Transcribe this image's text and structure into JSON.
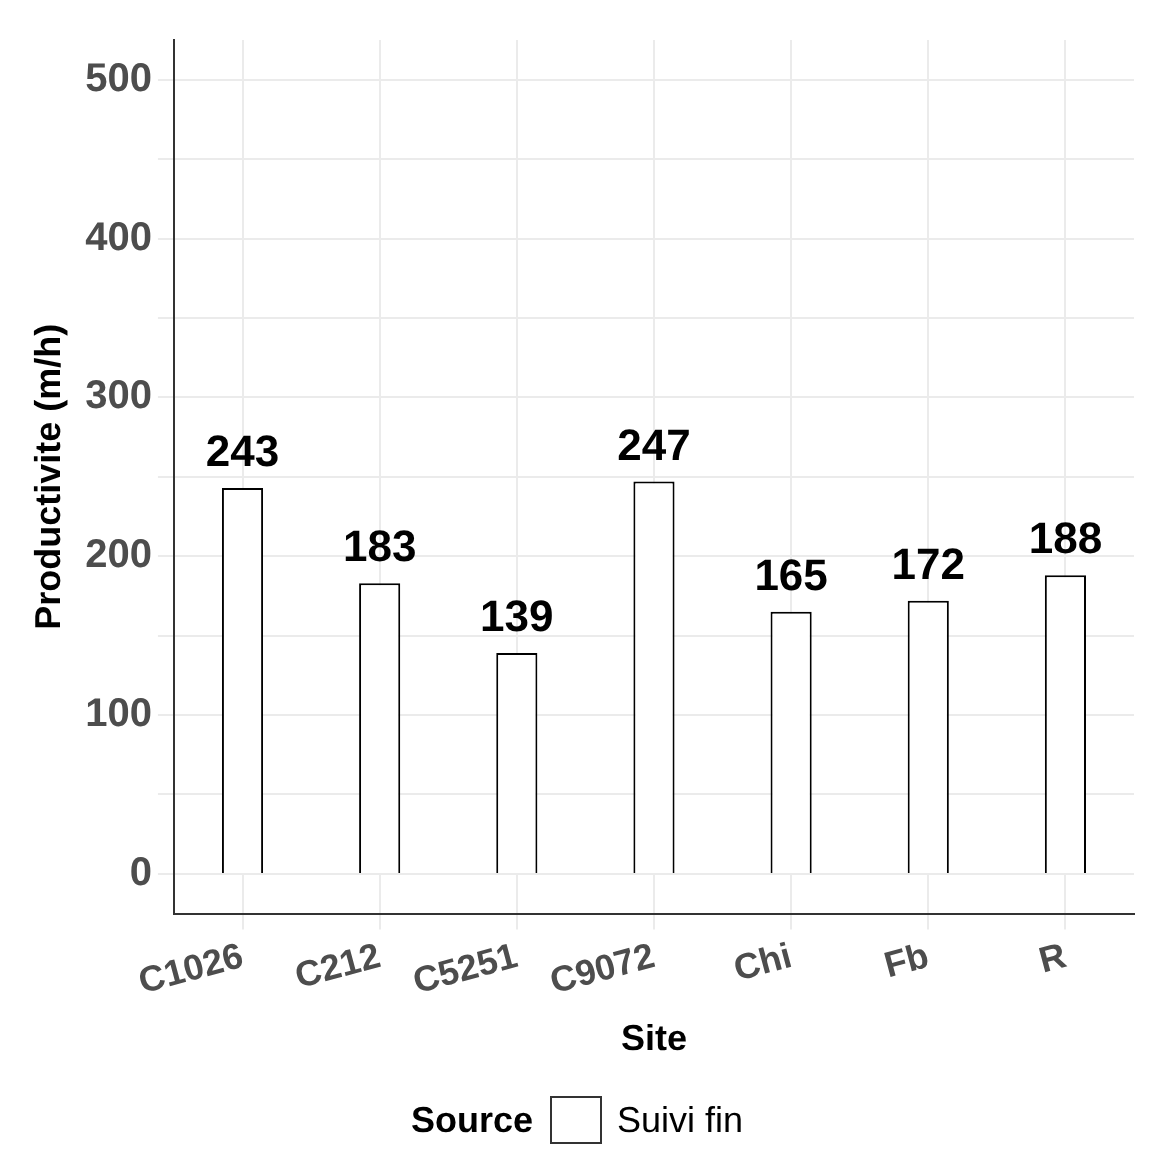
{
  "chart_data": {
    "type": "bar",
    "xlabel": "Site",
    "ylabel": "Productivite (m/h)",
    "legend_title": "Source",
    "categories": [
      "C1026",
      "C212",
      "C5251",
      "C9072",
      "Chi",
      "Fb",
      "R"
    ],
    "series": [
      {
        "name": "Suivi fin",
        "color": "#ffffff",
        "values": [
          243,
          183,
          139,
          247,
          165,
          172,
          188
        ]
      }
    ],
    "ylim": [
      -25,
      525
    ],
    "yticks": [
      0,
      {
        "value": 50,
        "label": null
      },
      100,
      {
        "value": 150,
        "label": null
      },
      200,
      {
        "value": 250,
        "label": null
      },
      300,
      {
        "value": 350,
        "label": null
      },
      400,
      {
        "value": 450,
        "label": null
      },
      500
    ],
    "grid": true,
    "legend": "bottom",
    "data_labels": true
  }
}
